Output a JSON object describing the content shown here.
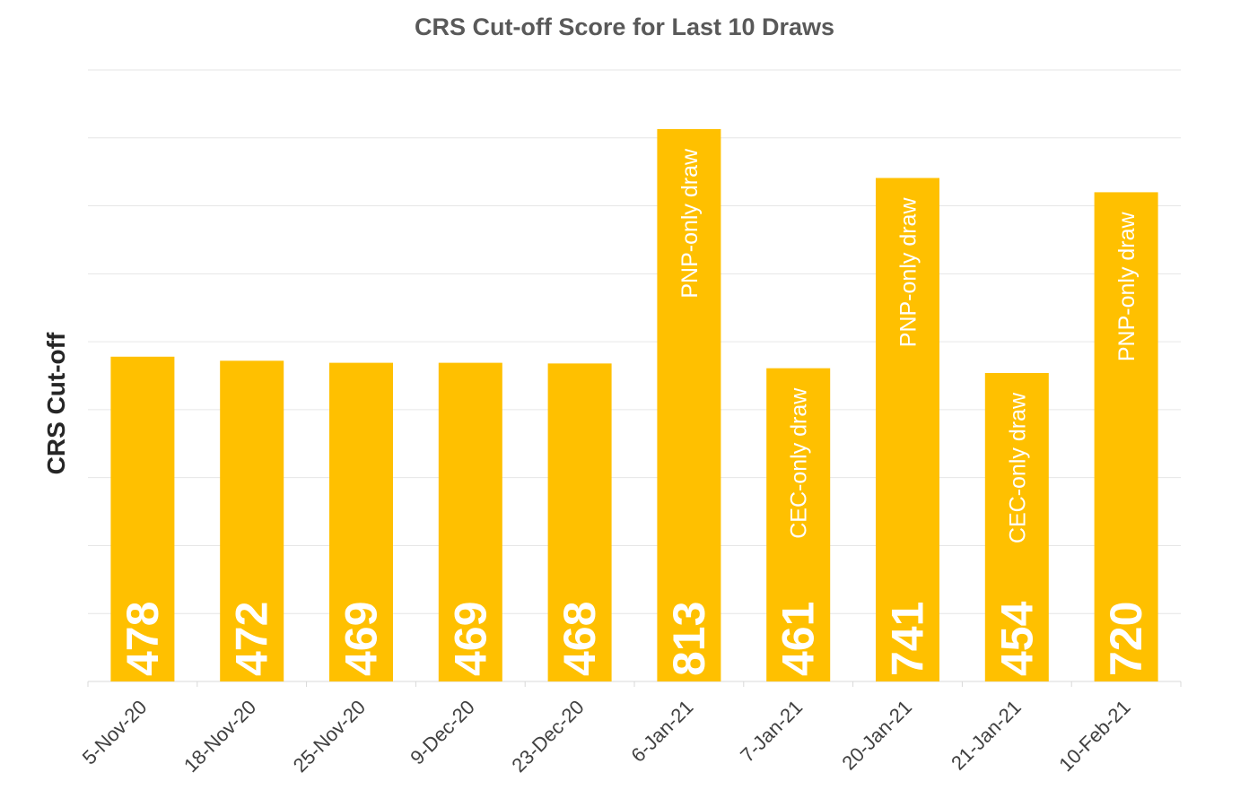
{
  "chart_data": {
    "type": "bar",
    "title": "CRS Cut-off Score for Last 10 Draws",
    "xlabel": "",
    "ylabel": "CRS Cut-off",
    "categories": [
      "5-Nov-20",
      "18-Nov-20",
      "25-Nov-20",
      "9-Dec-20",
      "23-Dec-20",
      "6-Jan-21",
      "7-Jan-21",
      "20-Jan-21",
      "21-Jan-21",
      "10-Feb-21"
    ],
    "values": [
      478,
      472,
      469,
      469,
      468,
      813,
      461,
      741,
      454,
      720
    ],
    "annotations": [
      "",
      "",
      "",
      "",
      "",
      "PNP-only draw",
      "CEC-only draw",
      "PNP-only draw",
      "CEC-only draw",
      "PNP-only draw"
    ],
    "ylim": [
      0,
      900
    ],
    "grid": true,
    "legend": "none",
    "bar_color": "#FFC000",
    "value_label_color": "#FFFFFF"
  }
}
